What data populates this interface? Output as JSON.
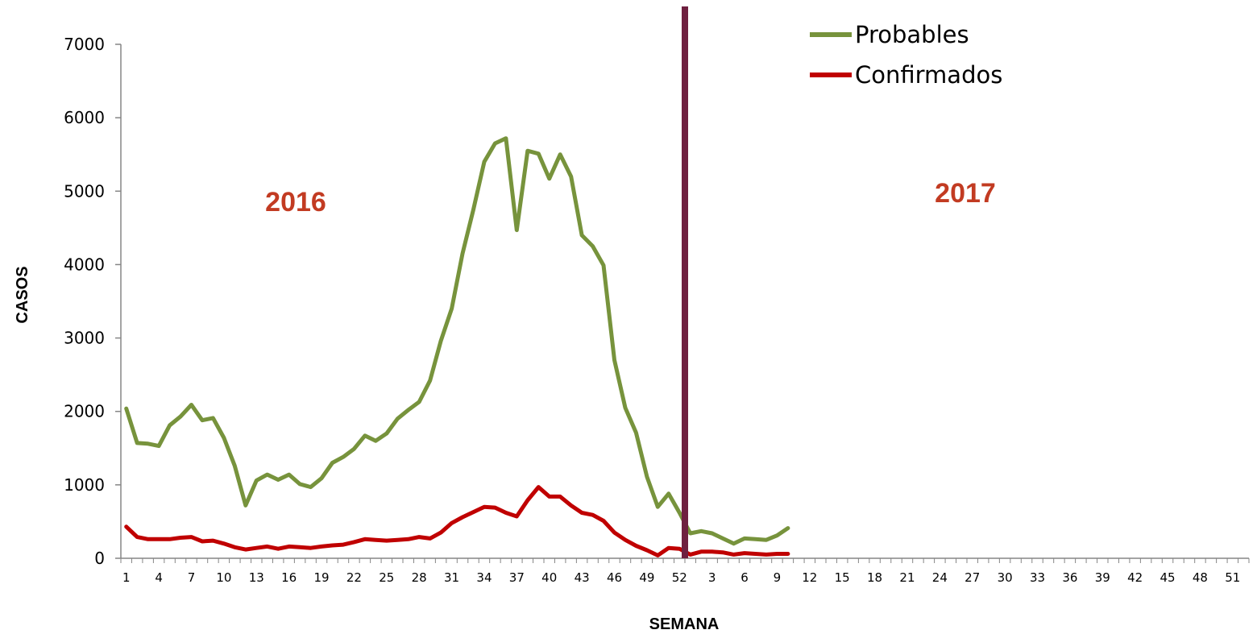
{
  "chart_data": {
    "type": "line",
    "xlabel": "SEMANA",
    "ylabel": "CASOS",
    "ylim": [
      0,
      7000
    ],
    "y_ticks": [
      0,
      1000,
      2000,
      3000,
      4000,
      5000,
      6000,
      7000
    ],
    "x_tick_labels": [
      "1",
      "4",
      "7",
      "10",
      "13",
      "16",
      "19",
      "22",
      "25",
      "28",
      "31",
      "34",
      "37",
      "40",
      "43",
      "46",
      "49",
      "52",
      "3",
      "6",
      "9",
      "12",
      "15",
      "18",
      "21",
      "24",
      "27",
      "30",
      "33",
      "36",
      "39",
      "42",
      "45",
      "48",
      "51"
    ],
    "categories_2016": [
      "1",
      "2",
      "3",
      "4",
      "5",
      "6",
      "7",
      "8",
      "9",
      "10",
      "11",
      "12",
      "13",
      "14",
      "15",
      "16",
      "17",
      "18",
      "19",
      "20",
      "21",
      "22",
      "23",
      "24",
      "25",
      "26",
      "27",
      "28",
      "29",
      "30",
      "31",
      "32",
      "33",
      "34",
      "35",
      "36",
      "37",
      "38",
      "39",
      "40",
      "41",
      "42",
      "43",
      "44",
      "45",
      "46",
      "47",
      "48",
      "49",
      "50",
      "51",
      "52"
    ],
    "categories_2017": [
      "1",
      "2",
      "3",
      "4",
      "5",
      "6",
      "7",
      "8",
      "9",
      "10",
      "11",
      "12",
      "13",
      "14",
      "15",
      "16",
      "17",
      "18",
      "19",
      "20",
      "21",
      "22",
      "23",
      "24",
      "25",
      "26",
      "27",
      "28",
      "29",
      "30",
      "31",
      "32",
      "33",
      "34",
      "35",
      "36",
      "37",
      "38",
      "39",
      "40",
      "41",
      "42",
      "43",
      "44",
      "45",
      "46",
      "47",
      "48",
      "49",
      "50",
      "51",
      "52"
    ],
    "series": [
      {
        "name": "Probables",
        "color": "#77933c",
        "values": [
          2040,
          1570,
          1560,
          1530,
          1810,
          1930,
          2090,
          1880,
          1910,
          1640,
          1260,
          720,
          1060,
          1140,
          1070,
          1140,
          1010,
          970,
          1090,
          1300,
          1380,
          1490,
          1670,
          1600,
          1700,
          1900,
          2020,
          2130,
          2420,
          2960,
          3400,
          4150,
          4750,
          5400,
          5650,
          5720,
          4470,
          5550,
          5510,
          5170,
          5500,
          5200,
          4400,
          4250,
          3990,
          2700,
          2050,
          1710,
          1110,
          700,
          880,
          620,
          340,
          370,
          340,
          270,
          200,
          270,
          260,
          250,
          310,
          410
        ]
      },
      {
        "name": "Confirmados",
        "color": "#c00000",
        "values": [
          430,
          290,
          260,
          260,
          260,
          280,
          290,
          230,
          240,
          200,
          150,
          120,
          140,
          160,
          130,
          160,
          150,
          140,
          160,
          175,
          185,
          220,
          260,
          250,
          240,
          250,
          260,
          290,
          270,
          350,
          480,
          560,
          630,
          700,
          690,
          620,
          570,
          790,
          970,
          840,
          840,
          720,
          620,
          590,
          510,
          350,
          250,
          170,
          110,
          40,
          140,
          130,
          50,
          90,
          90,
          80,
          50,
          70,
          60,
          50,
          60,
          60
        ]
      }
    ],
    "divider_after_week": "52",
    "annotations": [
      {
        "text": "2016",
        "color": "#c23b22"
      },
      {
        "text": "2017",
        "color": "#c23b22"
      }
    ],
    "divider_color": "#6f2040",
    "legend_position": "top-right",
    "grid": false
  }
}
